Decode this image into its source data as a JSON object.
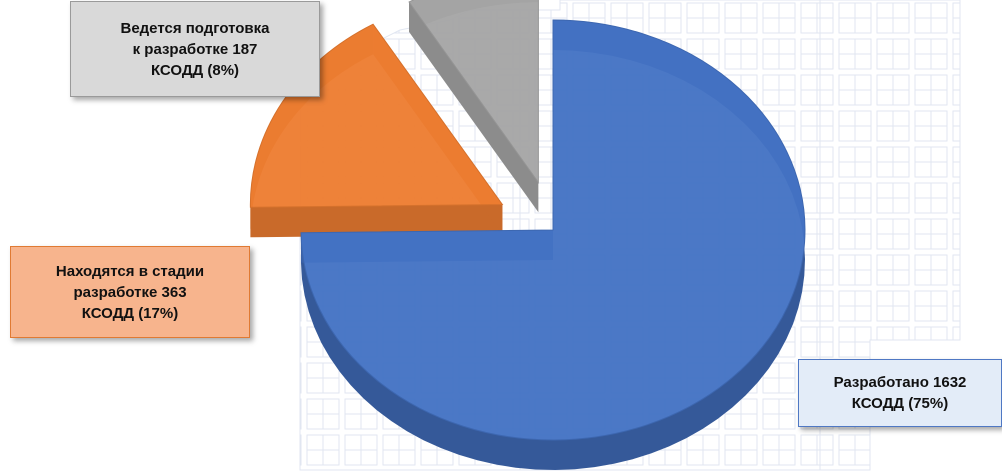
{
  "chart_data": {
    "type": "pie",
    "style": "3d-exploded",
    "slices": [
      {
        "label": "Разработано",
        "value": 1632,
        "percent": 75,
        "color": "#4472c4"
      },
      {
        "label": "Находятся в стадии разработке",
        "value": 363,
        "percent": 17,
        "color": "#ed7d31"
      },
      {
        "label": "Ведется подготовка к разработке",
        "value": 187,
        "percent": 8,
        "color": "#a5a5a5"
      }
    ]
  },
  "callouts": {
    "gray": {
      "lines": [
        "Ведется подготовка",
        "к разработке 187",
        "КСОДД (8%)"
      ]
    },
    "orange": {
      "lines": [
        "Находятся в стадии",
        "разработке 363",
        "КСОДД (17%)"
      ]
    },
    "blue": {
      "lines": [
        "Разработано 1632",
        "КСОДД (75%)"
      ]
    }
  }
}
